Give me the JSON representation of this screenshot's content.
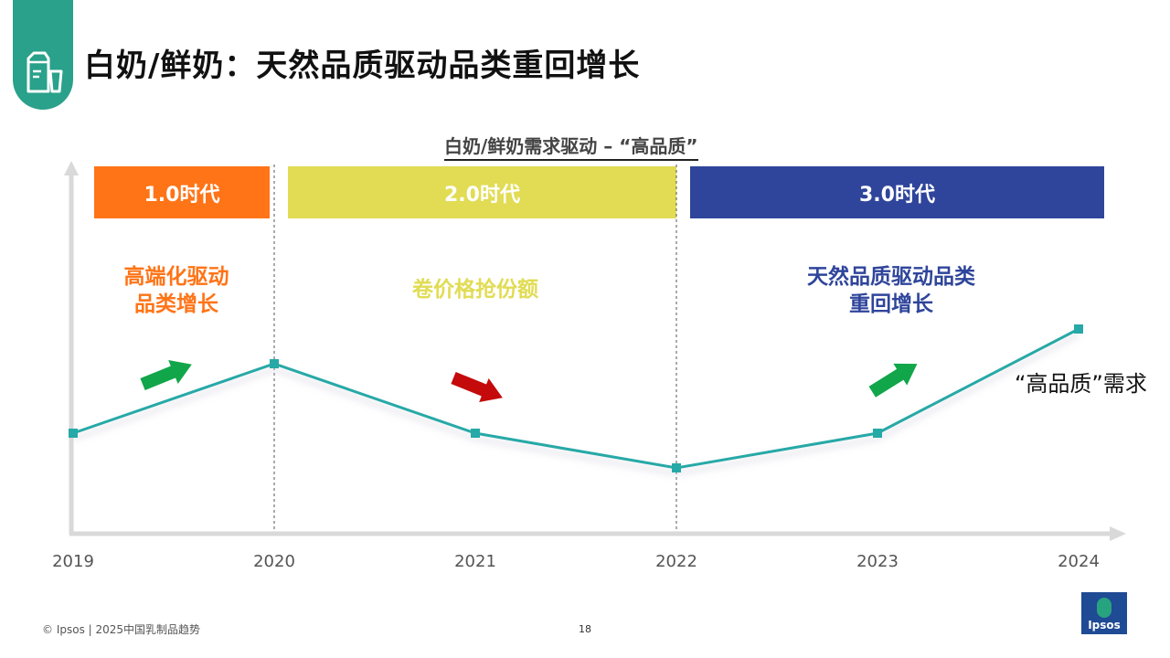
{
  "page_title": "白奶/鲜奶：天然品质驱动品类重回增长",
  "chart_data": {
    "type": "line",
    "title": "白奶/鲜奶需求驱动 – “高品质”",
    "x": [
      "2019",
      "2020",
      "2021",
      "2022",
      "2023",
      "2024"
    ],
    "series": [
      {
        "name": "“高品质”需求",
        "values": [
          3.0,
          5.0,
          3.0,
          2.0,
          3.0,
          6.0
        ]
      }
    ],
    "ylim": [
      0,
      10
    ],
    "xlabel": "",
    "ylabel": "",
    "grid": false
  },
  "eras": [
    {
      "label": "1.0时代",
      "description": "高端化驱动\n品类增长",
      "color": "#ff7417"
    },
    {
      "label": "2.0时代",
      "description": "卷价格抢份额",
      "color": "#e1dc54"
    },
    {
      "label": "3.0时代",
      "description": "天然品质驱动品类\n重回增长",
      "color": "#2f459b"
    }
  ],
  "trend_arrows": [
    {
      "direction": "up",
      "color": "#11a64a"
    },
    {
      "direction": "down",
      "color": "#c40a0a"
    },
    {
      "direction": "up",
      "color": "#11a64a"
    }
  ],
  "line_color": "#26a9a7",
  "footer": {
    "copyright": "© Ipsos | 2025中国乳制品趋势",
    "page_number": "18",
    "logo_text": "Ipsos"
  },
  "badge_icon": "milk-carton-icon"
}
